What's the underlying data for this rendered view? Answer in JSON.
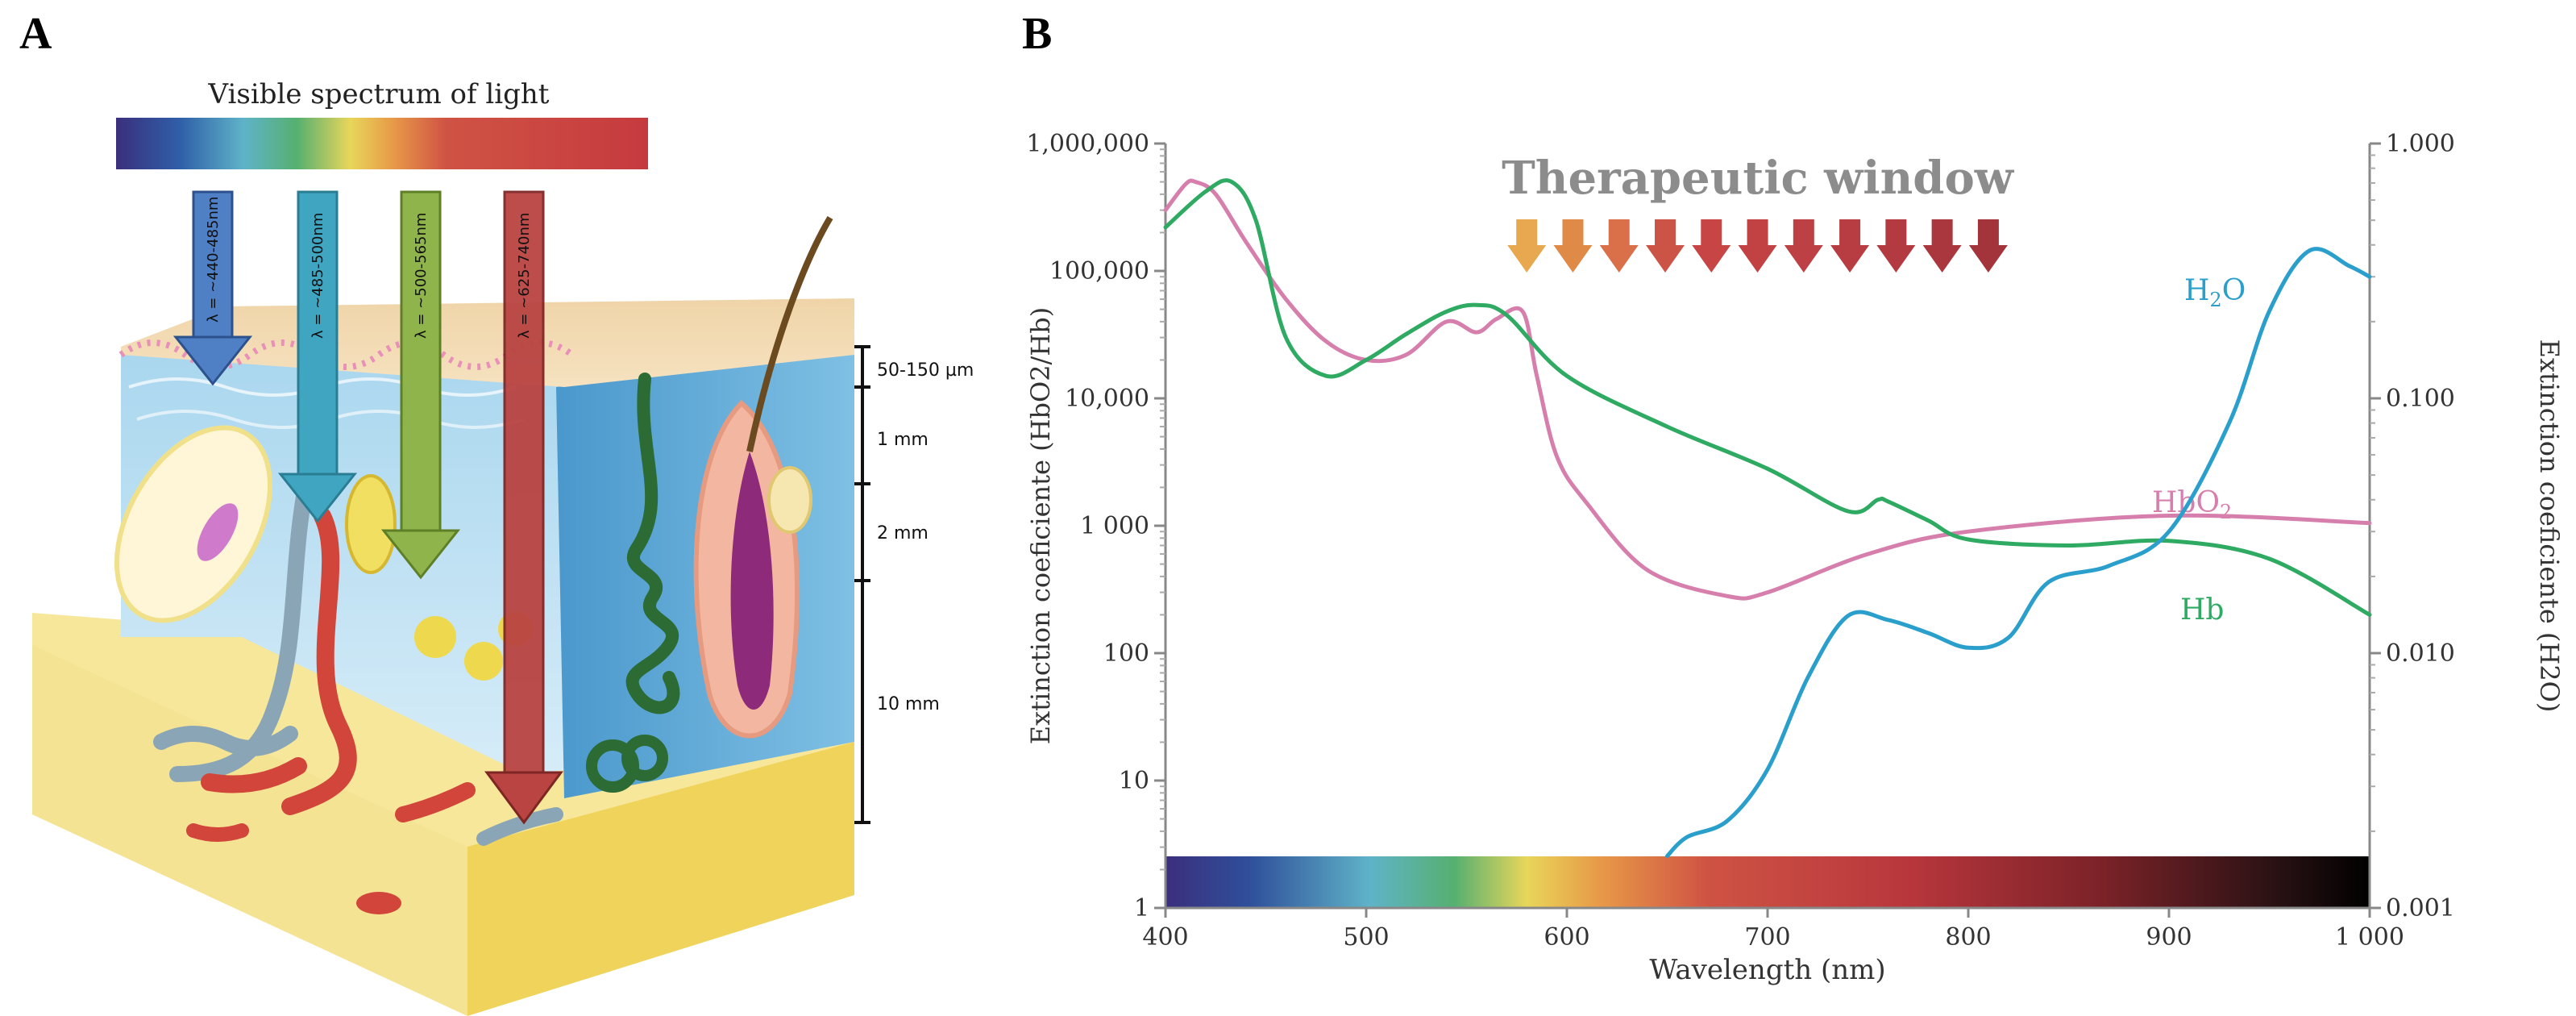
{
  "panels": {
    "a": {
      "letter": "A"
    },
    "b": {
      "letter": "B"
    }
  },
  "illustration": {
    "spectrum_label": "Visible spectrum of light",
    "beams": [
      {
        "label": "λ = ~440-485nm",
        "color": "#4f7fc4"
      },
      {
        "label": "λ = ~485-500nm",
        "color": "#3fa5c0"
      },
      {
        "label": "λ = ~500-565nm",
        "color": "#8fb44b"
      },
      {
        "label": "λ = ~625-740nm",
        "color": "#b94442"
      }
    ],
    "depth_scale": [
      "50-150 µm",
      "1 mm",
      "2 mm",
      "10 mm"
    ]
  },
  "chart_data": {
    "type": "line",
    "xlabel": "Wavelength (nm)",
    "ylabel_left": "Extinction coeficiente (HbO2/Hb)",
    "ylabel_right": "Extinction coeficiente (H2O)",
    "xlim": [
      400,
      1000
    ],
    "ylim_left": [
      1,
      1000000
    ],
    "ylim_right": [
      0.001,
      1.0
    ],
    "y_scale": "log",
    "x_ticks": [
      {
        "value": 400,
        "label": "400"
      },
      {
        "value": 500,
        "label": "500"
      },
      {
        "value": 600,
        "label": "600"
      },
      {
        "value": 700,
        "label": "700"
      },
      {
        "value": 800,
        "label": "800"
      },
      {
        "value": 900,
        "label": "900"
      },
      {
        "value": 1000,
        "label": "1 000"
      }
    ],
    "y_ticks_left": [
      {
        "value": 1,
        "label": "1"
      },
      {
        "value": 10,
        "label": "10"
      },
      {
        "value": 100,
        "label": "100"
      },
      {
        "value": 1000,
        "label": "1 000"
      },
      {
        "value": 10000,
        "label": "10,000"
      },
      {
        "value": 100000,
        "label": "100,000"
      },
      {
        "value": 1000000,
        "label": "1,000,000"
      }
    ],
    "y_ticks_right": [
      {
        "value": 0.001,
        "label": "0.001"
      },
      {
        "value": 0.01,
        "label": "0.010"
      },
      {
        "value": 0.1,
        "label": "0.100"
      },
      {
        "value": 1.0,
        "label": "1.000"
      }
    ],
    "therapeutic_window": {
      "label": "Therapeutic window",
      "range": [
        580,
        810
      ],
      "arrow_colors": [
        "#e8a850",
        "#e08a48",
        "#d9704a",
        "#cc5446",
        "#c74645",
        "#c24244",
        "#bd4044",
        "#b83d42",
        "#b23a40",
        "#ab373e",
        "#a3343c"
      ]
    },
    "series": [
      {
        "name": "HbO2",
        "label_main": "HbO",
        "label_sub": "2",
        "color": "#d67fad",
        "axis": "left",
        "x": [
          400,
          410,
          415,
          425,
          440,
          460,
          480,
          500,
          520,
          540,
          555,
          565,
          578,
          585,
          595,
          610,
          640,
          680,
          700,
          750,
          800,
          900,
          1000
        ],
        "y": [
          300000,
          480000,
          500000,
          400000,
          170000,
          60000,
          28000,
          20000,
          22000,
          40000,
          33000,
          42000,
          48000,
          15000,
          3500,
          1500,
          450,
          280,
          300,
          600,
          900,
          1200,
          1050
        ]
      },
      {
        "name": "Hb",
        "label_main": "Hb",
        "label_sub": "",
        "color": "#2eaa62",
        "axis": "left",
        "x": [
          400,
          420,
          433,
          445,
          460,
          480,
          500,
          520,
          540,
          555,
          570,
          600,
          650,
          700,
          740,
          755,
          760,
          780,
          800,
          850,
          900,
          950,
          1000
        ],
        "y": [
          220000,
          420000,
          500000,
          250000,
          30000,
          15000,
          20000,
          32000,
          48000,
          54000,
          45000,
          15000,
          6000,
          2800,
          1300,
          1600,
          1550,
          1100,
          780,
          700,
          760,
          550,
          200
        ]
      },
      {
        "name": "H2O",
        "label_main": "H",
        "label_sub": "2",
        "label_tail": "O",
        "color": "#2b9fcc",
        "axis": "right",
        "x": [
          650,
          660,
          680,
          700,
          720,
          740,
          760,
          780,
          800,
          820,
          840,
          870,
          900,
          930,
          950,
          970,
          990,
          1000
        ],
        "y": [
          0.0016,
          0.0019,
          0.0022,
          0.0035,
          0.008,
          0.014,
          0.0135,
          0.012,
          0.0105,
          0.0115,
          0.019,
          0.022,
          0.03,
          0.08,
          0.22,
          0.38,
          0.33,
          0.3
        ]
      }
    ]
  }
}
